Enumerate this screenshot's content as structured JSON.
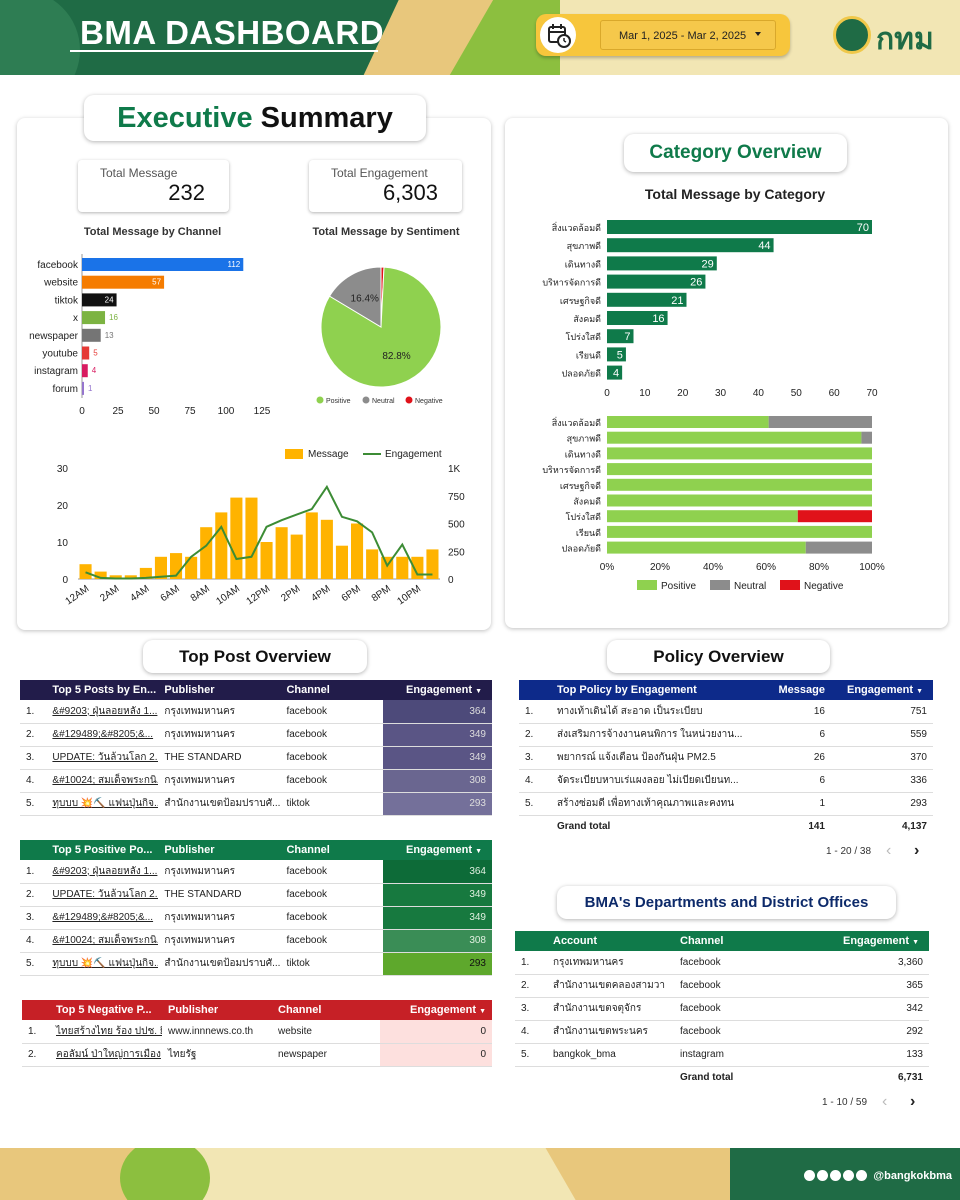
{
  "header": {
    "title": "BMA DASHBOARD",
    "date_range": "Mar 1, 2025 - Mar 2, 2025",
    "logo_text": "กทม",
    "calendar_icon": "calendar-clock-icon"
  },
  "executive": {
    "title_part1": "Executive",
    "title_part2": "Summary",
    "kpis": [
      {
        "label": "Total Message",
        "value": "232"
      },
      {
        "label": "Total Engagement",
        "value": "6,303"
      }
    ],
    "channel_chart_title": "Total Message by Channel",
    "sentiment_chart_title": "Total Message by Sentiment"
  },
  "category": {
    "title": "Category Overview",
    "chart_title": "Total Message by Category"
  },
  "colors": {
    "green_dark": "#0f7a4a",
    "positive": "#8fd14f",
    "neutral": "#8c8c8c",
    "negative": "#e0121a",
    "message": "#ffb300",
    "engagement": "#3c8c35"
  },
  "chart_data": [
    {
      "type": "bar",
      "orientation": "horizontal",
      "title": "Total Message by Channel",
      "categories": [
        "facebook",
        "website",
        "tiktok",
        "x",
        "newspaper",
        "youtube",
        "instagram",
        "forum"
      ],
      "values": [
        112,
        57,
        24,
        16,
        13,
        5,
        4,
        1
      ],
      "bar_colors": [
        "#1a73e8",
        "#f57c00",
        "#111111",
        "#7cb342",
        "#757575",
        "#e53935",
        "#d81b60",
        "#9575cd"
      ],
      "xticks": [
        "0",
        "25",
        "50",
        "75",
        "100",
        "125"
      ],
      "xlim": [
        0,
        125
      ]
    },
    {
      "type": "pie",
      "title": "Total Message by Sentiment",
      "labels": [
        "Positive",
        "Neutral",
        "Negative"
      ],
      "values": [
        82.8,
        16.4,
        0.8
      ],
      "slice_labels": [
        "82.8%",
        "16.4%",
        ""
      ],
      "colors": [
        "#8fd14f",
        "#8c8c8c",
        "#e0121a"
      ],
      "legend": "bottom"
    },
    {
      "type": "bar+line",
      "x": [
        "12AM",
        "1AM",
        "2AM",
        "3AM",
        "4AM",
        "5AM",
        "6AM",
        "7AM",
        "8AM",
        "9AM",
        "10AM",
        "11AM",
        "12PM",
        "1PM",
        "2PM",
        "3PM",
        "4PM",
        "5PM",
        "6PM",
        "7PM",
        "8PM",
        "9PM",
        "10PM",
        "11PM"
      ],
      "xticks": [
        "12AM",
        "2AM",
        "4AM",
        "6AM",
        "8AM",
        "10AM",
        "12PM",
        "2PM",
        "4PM",
        "6PM",
        "8PM",
        "10PM"
      ],
      "series": [
        {
          "name": "Message",
          "values": [
            4,
            2,
            1,
            1,
            3,
            6,
            7,
            6,
            14,
            18,
            22,
            22,
            10,
            14,
            12,
            18,
            16,
            9,
            15,
            8,
            6,
            6,
            6,
            8
          ]
        },
        {
          "name": "Engagement",
          "values": [
            60,
            10,
            5,
            5,
            10,
            20,
            30,
            200,
            300,
            470,
            180,
            200,
            470,
            530,
            580,
            630,
            830,
            560,
            520,
            420,
            120,
            310,
            40,
            40
          ]
        }
      ],
      "yticks_left": [
        "0",
        "10",
        "20",
        "30"
      ],
      "yticks_right": [
        "0",
        "250",
        "500",
        "750",
        "1K"
      ],
      "ylim_left": [
        0,
        30
      ],
      "ylim_right": [
        0,
        1000
      ],
      "legend": "top-right"
    },
    {
      "type": "bar",
      "orientation": "horizontal",
      "title": "Total Message by Category",
      "categories": [
        "สิ่งแวดล้อมดี",
        "สุขภาพดี",
        "เดินทางดี",
        "บริหารจัดการดี",
        "เศรษฐกิจดี",
        "สังคมดี",
        "โปร่งใสดี",
        "เรียนดี",
        "ปลอดภัยดี"
      ],
      "values": [
        70,
        44,
        29,
        26,
        21,
        16,
        7,
        5,
        4
      ],
      "xticks": [
        "0",
        "10",
        "20",
        "30",
        "40",
        "50",
        "60",
        "70"
      ],
      "xlim": [
        0,
        70
      ]
    },
    {
      "type": "bar",
      "orientation": "horizontal",
      "stacked": "percent",
      "categories": [
        "สิ่งแวดล้อมดี",
        "สุขภาพดี",
        "เดินทางดี",
        "บริหารจัดการดี",
        "เศรษฐกิจดี",
        "สังคมดี",
        "โปร่งใสดี",
        "เรียนดี",
        "ปลอดภัยดี"
      ],
      "series": [
        {
          "name": "Positive",
          "values": [
            61,
            96,
            100,
            100,
            100,
            100,
            72,
            100,
            75
          ]
        },
        {
          "name": "Neutral",
          "values": [
            39,
            4,
            0,
            0,
            0,
            0,
            0,
            0,
            25
          ]
        },
        {
          "name": "Negative",
          "values": [
            0,
            0,
            0,
            0,
            0,
            0,
            28,
            0,
            0
          ]
        }
      ],
      "xticks": [
        "0%",
        "20%",
        "40%",
        "60%",
        "80%",
        "100%"
      ],
      "legend": "bottom"
    }
  ],
  "top_post": {
    "title": "Top Post Overview",
    "table1": {
      "headers": [
        "",
        "Top 5 Posts by En...",
        "Publisher",
        "Channel",
        "Engagement"
      ],
      "rows": [
        [
          "1.",
          "&#9203; ฝุ่นลอยหลัง 1...",
          "กรุงเทพมหานคร",
          "facebook",
          "364"
        ],
        [
          "2.",
          "&#129489;&#8205;&...",
          "กรุงเทพมหานคร",
          "facebook",
          "349"
        ],
        [
          "3.",
          "UPDATE: วันล้วนโลก 2...",
          "THE STANDARD",
          "facebook",
          "349"
        ],
        [
          "4.",
          "&#10024; สมเด็จพระกนิ...",
          "กรุงเทพมหานคร",
          "facebook",
          "308"
        ],
        [
          "5.",
          "ทุบบบ 💥⛏️ แฟนปุ่นกิจ...",
          "สำนักงานเขตป้อมปราบศั...",
          "tiktok",
          "293"
        ]
      ]
    },
    "table2": {
      "headers": [
        "",
        "Top 5 Positive Po...",
        "Publisher",
        "Channel",
        "Engagement"
      ],
      "rows": [
        [
          "1.",
          "&#9203; ฝุ่นลอยหลัง 1...",
          "กรุงเทพมหานคร",
          "facebook",
          "364"
        ],
        [
          "2.",
          "UPDATE: วันล้วนโลก 2...",
          "THE STANDARD",
          "facebook",
          "349"
        ],
        [
          "3.",
          "&#129489;&#8205;&...",
          "กรุงเทพมหานคร",
          "facebook",
          "349"
        ],
        [
          "4.",
          "&#10024; สมเด็จพระกนิ...",
          "กรุงเทพมหานคร",
          "facebook",
          "308"
        ],
        [
          "5.",
          "ทุบบบ 💥⛏️ แฟนปุ่นกิจ...",
          "สำนักงานเขตป้อมปราบศั...",
          "tiktok",
          "293"
        ]
      ]
    },
    "table3": {
      "headers": [
        "",
        "Top 5 Negative P...",
        "Publisher",
        "Channel",
        "Engagement"
      ],
      "rows": [
        [
          "1.",
          "ไทยสร้างไทย ร้อง ปปช. ยื่...",
          "www.innnews.co.th",
          "website",
          "0"
        ],
        [
          "2.",
          "คอลัมน์ ป่าใหญ่การเมือง",
          "ไทยรัฐ",
          "newspaper",
          "0"
        ]
      ]
    }
  },
  "policy": {
    "title": "Policy Overview",
    "headers": [
      "",
      "Top Policy by Engagement",
      "Message",
      "Engagement"
    ],
    "rows": [
      [
        "1.",
        "ทางเท้าเดินได้ สะอาด เป็นระเบียบ",
        "16",
        "751"
      ],
      [
        "2.",
        "ส่งเสริมการจ้างงานคนพิการ ในหน่วยงาน...",
        "6",
        "559"
      ],
      [
        "3.",
        "พยากรณ์ แจ้งเตือน ป้องกันฝุ่น PM2.5",
        "26",
        "370"
      ],
      [
        "4.",
        "จัดระเบียบหาบเร่แผงลอย ไม่เบียดเบียนท...",
        "6",
        "336"
      ],
      [
        "5.",
        "สร้างซ่อมดี เพื่อทางเท้าคุณภาพและคงทน",
        "1",
        "293"
      ]
    ],
    "total_label": "Grand total",
    "total_message": "141",
    "total_engagement": "4,137",
    "pager": "1 - 20 / 38"
  },
  "departments": {
    "title": "BMA's Departments and District Offices",
    "headers": [
      "",
      "Account",
      "Channel",
      "Engagement"
    ],
    "rows": [
      [
        "1.",
        "กรุงเทพมหานคร",
        "facebook",
        "3,360"
      ],
      [
        "2.",
        "สำนักงานเขตคลองสามวา",
        "facebook",
        "365"
      ],
      [
        "3.",
        "สำนักงานเขตจตุจักร",
        "facebook",
        "342"
      ],
      [
        "4.",
        "สำนักงานเขตพระนคร",
        "facebook",
        "292"
      ],
      [
        "5.",
        "bangkok_bma",
        "instagram",
        "133"
      ]
    ],
    "total_label": "Grand total",
    "total_engagement": "6,731",
    "pager": "1 - 10 / 59"
  },
  "footer": {
    "handle": "@bangkokbma"
  }
}
